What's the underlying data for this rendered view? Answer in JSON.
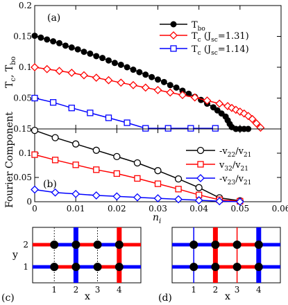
{
  "chart_data": [
    {
      "panel_label": "(a)",
      "type": "line",
      "ylabel_main": "T",
      "ylabel_sub1": "c",
      "ylabel_mid": ", T",
      "ylabel_sub2": "bo",
      "xlim": [
        0,
        0.06
      ],
      "ylim": [
        0,
        0.2
      ],
      "xticks": [
        "0",
        "0.01",
        "0.02",
        "0.03",
        "0.04",
        "0.05",
        "0.06"
      ],
      "yticks": [
        "0",
        "0.05",
        "0.1",
        "0.15",
        "0.2"
      ],
      "grid": false,
      "legend_position": "top-right",
      "series": [
        {
          "legend_main": "T",
          "legend_sub": "bo",
          "legend_suffix": "",
          "color": "#000000",
          "marker": "filled-circle",
          "x": [
            0.0,
            0.0015,
            0.003,
            0.0045,
            0.006,
            0.0075,
            0.009,
            0.0105,
            0.012,
            0.0135,
            0.015,
            0.0165,
            0.018,
            0.0195,
            0.021,
            0.0225,
            0.024,
            0.0255,
            0.027,
            0.0285,
            0.03,
            0.0315,
            0.033,
            0.0345,
            0.036,
            0.0375,
            0.039,
            0.0405,
            0.042,
            0.0435,
            0.0445,
            0.0455,
            0.0465,
            0.047,
            0.0475,
            0.048,
            0.049,
            0.05,
            0.051,
            0.052
          ],
          "y": [
            0.151,
            0.148,
            0.145,
            0.142,
            0.139,
            0.135,
            0.132,
            0.129,
            0.125,
            0.122,
            0.118,
            0.115,
            0.111,
            0.107,
            0.104,
            0.1,
            0.096,
            0.092,
            0.088,
            0.084,
            0.08,
            0.076,
            0.071,
            0.067,
            0.062,
            0.057,
            0.052,
            0.047,
            0.041,
            0.035,
            0.03,
            0.025,
            0.02,
            0.014,
            0.008,
            0.003,
            0.0,
            0.0,
            0.0,
            0.0
          ]
        },
        {
          "legend_main": "T",
          "legend_sub": "c",
          "legend_suffix": " (J",
          "legend_sub2": "sc",
          "legend_tail": "=1.31)",
          "color": "#ff0000",
          "marker": "open-diamond",
          "x": [
            0.0,
            0.003,
            0.006,
            0.009,
            0.012,
            0.015,
            0.018,
            0.021,
            0.024,
            0.027,
            0.03,
            0.033,
            0.036,
            0.039,
            0.042,
            0.045,
            0.047,
            0.048,
            0.049,
            0.05,
            0.051,
            0.052,
            0.053,
            0.054,
            0.055
          ],
          "y": [
            0.1,
            0.097,
            0.094,
            0.091,
            0.087,
            0.083,
            0.079,
            0.075,
            0.071,
            0.067,
            0.063,
            0.059,
            0.055,
            0.051,
            0.046,
            0.041,
            0.037,
            0.034,
            0.031,
            0.028,
            0.025,
            0.021,
            0.016,
            0.009,
            0.002
          ]
        },
        {
          "legend_main": "T",
          "legend_sub": "c",
          "legend_suffix": " (J",
          "legend_sub2": "sc",
          "legend_tail": "=1.14)",
          "color": "#0000ff",
          "marker": "open-square",
          "x": [
            0.0,
            0.0045,
            0.009,
            0.0135,
            0.018,
            0.0225,
            0.027,
            0.0325,
            0.038,
            0.044
          ],
          "y": [
            0.05,
            0.043,
            0.034,
            0.026,
            0.018,
            0.01,
            0.001,
            0.001,
            0.001,
            0.001
          ]
        }
      ]
    },
    {
      "panel_label": "(b)",
      "type": "line",
      "ylabel": "Fourier Component",
      "xlabel_main": "n",
      "xlabel_sub": "i",
      "xlim": [
        0,
        0.06
      ],
      "ylim": [
        0,
        0.15
      ],
      "xticks": [
        "0",
        "0.01",
        "0.02",
        "0.03",
        "0.04",
        "0.05",
        "0.06"
      ],
      "yticks": [
        "0",
        "0.05",
        "0.1",
        "0.15"
      ],
      "grid": false,
      "legend_position": "top-right",
      "series": [
        {
          "legend_a": "-v",
          "legend_a_sub": "22",
          "legend_b": "/v",
          "legend_b_sub": "21",
          "color": "#000000",
          "marker": "open-circle",
          "x": [
            0.0,
            0.005,
            0.01,
            0.015,
            0.02,
            0.025,
            0.03,
            0.035,
            0.04,
            0.045,
            0.05
          ],
          "y": [
            0.147,
            0.132,
            0.119,
            0.106,
            0.093,
            0.08,
            0.064,
            0.047,
            0.029,
            0.008,
            0.002
          ]
        },
        {
          "legend_a": "v",
          "legend_a_sub": "32",
          "legend_b": "/v",
          "legend_b_sub": "21",
          "color": "#ff0000",
          "marker": "open-square",
          "x": [
            0.0,
            0.005,
            0.01,
            0.015,
            0.02,
            0.025,
            0.03,
            0.035,
            0.04,
            0.045,
            0.05
          ],
          "y": [
            0.097,
            0.086,
            0.076,
            0.066,
            0.058,
            0.048,
            0.037,
            0.026,
            0.014,
            0.004,
            0.001
          ]
        },
        {
          "legend_a": "-v",
          "legend_a_sub": "23",
          "legend_b": "/v",
          "legend_b_sub": "21",
          "color": "#0000ff",
          "marker": "open-diamond",
          "x": [
            0.0,
            0.005,
            0.01,
            0.015,
            0.02,
            0.025,
            0.03,
            0.035,
            0.04,
            0.045,
            0.05
          ],
          "y": [
            0.025,
            0.019,
            0.016,
            0.013,
            0.011,
            0.009,
            0.007,
            0.005,
            0.003,
            0.001,
            0.0
          ]
        }
      ]
    },
    {
      "panel_label": "(c)",
      "type": "diagram",
      "xlabel": "x",
      "ylabel": "y",
      "xticks": [
        "1",
        "2",
        "3",
        "4"
      ],
      "yticks": [
        "1",
        "2"
      ],
      "thick_vertical": [
        {
          "x": 2,
          "color": "#0000ff"
        },
        {
          "x": 4,
          "color": "#ff0000"
        }
      ],
      "thin_vertical": [
        1,
        3
      ],
      "horizontal_segments": [
        {
          "y": 1,
          "colors": [
            "#0000ff",
            "#ff0000",
            "#0000ff",
            "#ff0000",
            "#0000ff"
          ]
        },
        {
          "y": 2,
          "colors": [
            "#ff0000",
            "#0000ff",
            "#ff0000",
            "#0000ff",
            "#ff0000"
          ]
        }
      ]
    },
    {
      "panel_label": "(d)",
      "type": "diagram",
      "xlabel": "x",
      "xticks": [
        "1",
        "2",
        "3",
        "4"
      ],
      "thick_vertical": [
        {
          "x": 2,
          "color": "#ff0000"
        },
        {
          "x": 4,
          "color": "#0000ff"
        }
      ],
      "thin_vertical": [
        {
          "x": 1,
          "color": "#0000ff"
        },
        {
          "x": 3,
          "color": "#ff0000"
        }
      ],
      "horizontal_segments": [
        {
          "y": 1,
          "colors": [
            "#0000ff",
            "#0000ff",
            "#ff0000",
            "#ff0000",
            "#0000ff"
          ]
        },
        {
          "y": 2,
          "colors": [
            "#0000ff",
            "#0000ff",
            "#ff0000",
            "#ff0000",
            "#0000ff"
          ]
        }
      ]
    }
  ]
}
